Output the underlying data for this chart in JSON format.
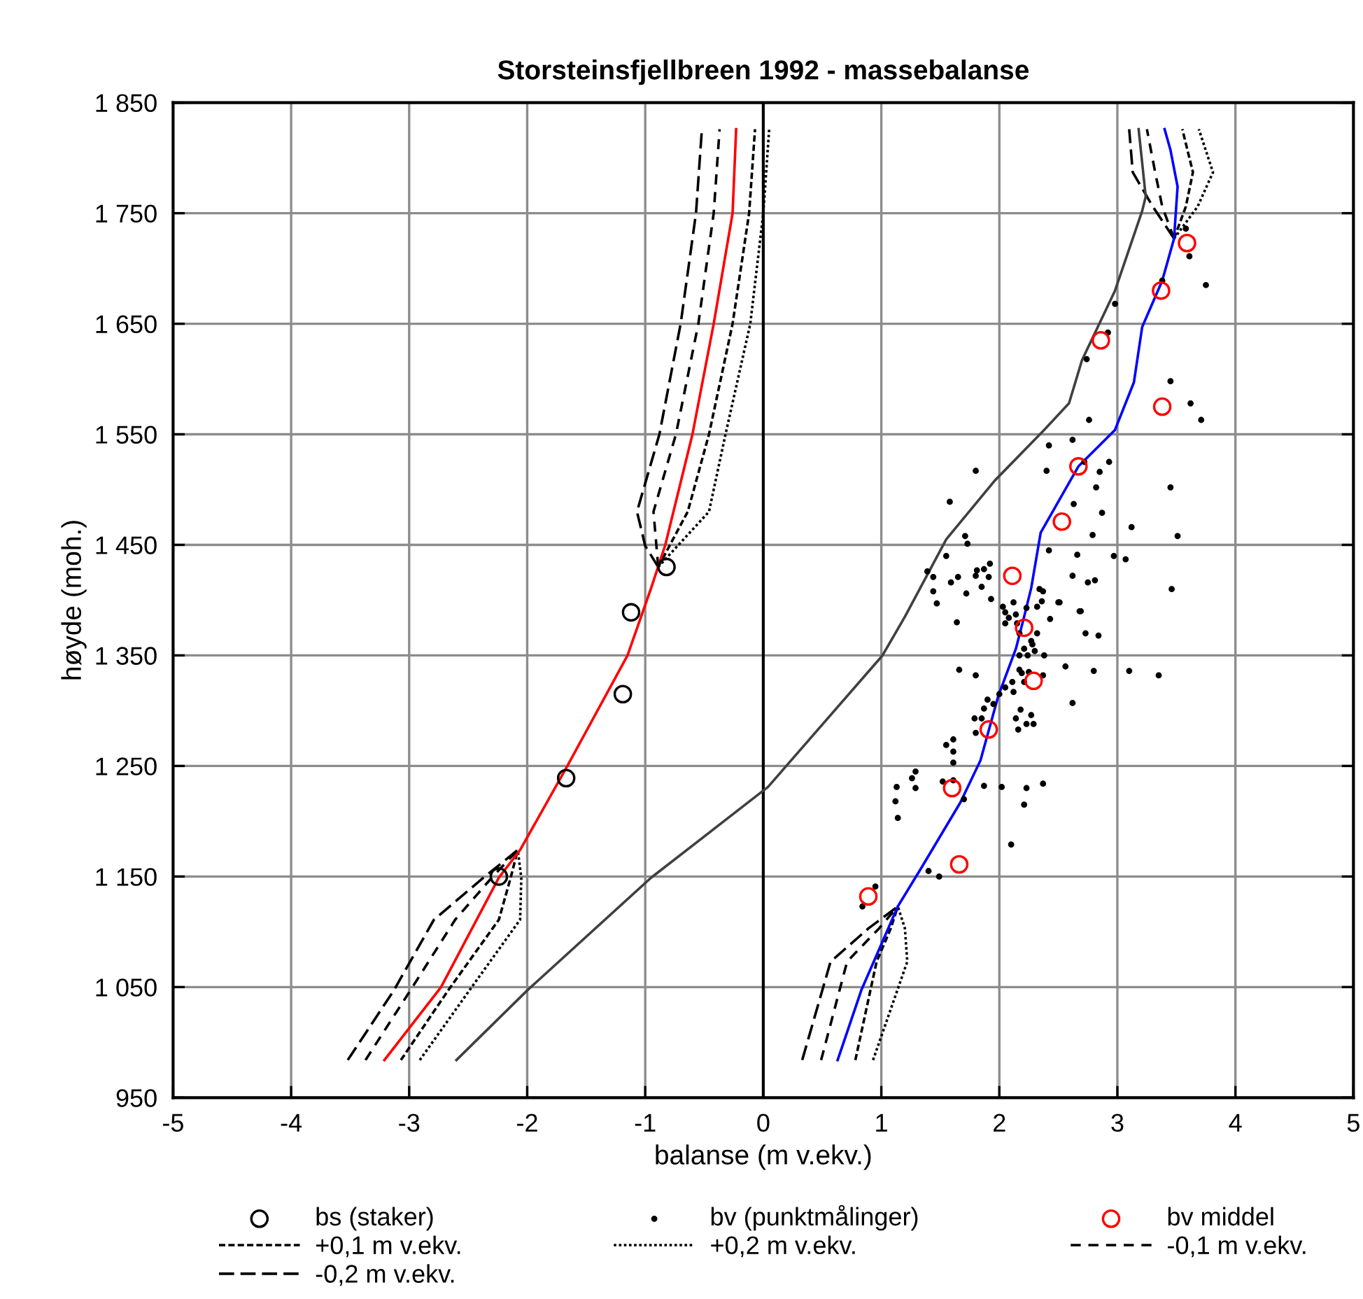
{
  "chart_data": {
    "type": "line",
    "title": "Storsteinsfjellbreen 1992 - massebalanse",
    "xlabel": "balanse (m v.ekv.)",
    "ylabel": "høyde (moh.)",
    "xlim": [
      -5,
      5
    ],
    "xticks": [
      -5,
      -4,
      -3,
      -2,
      -1,
      0,
      1,
      2,
      3,
      4,
      5
    ],
    "ylim": [
      950,
      1850
    ],
    "yticks": [
      {
        "value": 950,
        "label": "950"
      },
      {
        "value": 1050,
        "label": "1 050"
      },
      {
        "value": 1150,
        "label": "1 150"
      },
      {
        "value": 1250,
        "label": "1 250"
      },
      {
        "value": 1350,
        "label": "1 350"
      },
      {
        "value": 1450,
        "label": "1 450"
      },
      {
        "value": 1550,
        "label": "1 550"
      },
      {
        "value": 1650,
        "label": "1 650"
      },
      {
        "value": 1750,
        "label": "1 750"
      },
      {
        "value": 1850,
        "label": "1 850"
      }
    ],
    "grid": true,
    "legend": "bottom",
    "ref_lines": [
      {
        "axis": "x",
        "value": 0,
        "color": "#000000"
      }
    ],
    "series": [
      {
        "name": "bs (staker)",
        "type": "scatter",
        "marker": "circle",
        "color": "#000000",
        "x": [
          -0.82,
          -1.12,
          -1.19,
          -1.67,
          -2.24
        ],
        "values": [
          1430,
          1389,
          1315,
          1239,
          1150
        ]
      },
      {
        "name": "bv (punktmålinger)",
        "type": "scatter",
        "marker": "point",
        "color": "#000000",
        "x": [
          3.58,
          3.61,
          3.75,
          3.38,
          2.98,
          2.92,
          2.74,
          3.45,
          3.62,
          3.71,
          2.76,
          2.42,
          2.62,
          1.8,
          2.4,
          2.72,
          2.93,
          2.85,
          2.82,
          3.45,
          1.58,
          2.63,
          2.87,
          3.12,
          2.79,
          3.51,
          1.71,
          1.73,
          2.42,
          1.55,
          2.66,
          2.97,
          3.07,
          1.39,
          1.81,
          1.87,
          1.92,
          1.44,
          1.65,
          1.8,
          1.91,
          2.62,
          2.75,
          2.81,
          3.46,
          1.44,
          1.59,
          1.72,
          1.85,
          1.47,
          1.93,
          2.12,
          2.51,
          2.34,
          2.32,
          2.03,
          2.69,
          2.23,
          2.37,
          2.36,
          2.5,
          2.68,
          2.05,
          2.08,
          2.05,
          2.14,
          2.15,
          2.43,
          1.64,
          2.17,
          2.32,
          2.73,
          2.84,
          2.27,
          2.28,
          2.21,
          2.3,
          2.17,
          2.24,
          2.38,
          1.66,
          1.8,
          2.17,
          2.19,
          2.25,
          2.37,
          2.56,
          2.8,
          3.1,
          3.35,
          2.11,
          2.21,
          2.05,
          2.0,
          2.12,
          1.9,
          1.95,
          2.62,
          1.87,
          2.18,
          2.27,
          2.14,
          1.79,
          1.85,
          2.23,
          2.29,
          2.16,
          1.8,
          1.61,
          1.55,
          1.61,
          1.61,
          1.29,
          1.26,
          1.52,
          1.61,
          1.87,
          2.02,
          2.23,
          2.37,
          1.13,
          1.29,
          1.12,
          1.7,
          2.21,
          1.14,
          2.1,
          1.4,
          1.49,
          0.95,
          0.84
        ],
        "values": [
          1736,
          1711,
          1685,
          1689,
          1668,
          1642,
          1618,
          1598,
          1578,
          1563,
          1563,
          1540,
          1545,
          1517,
          1517,
          1525,
          1525,
          1516,
          1502,
          1502,
          1489,
          1487,
          1479,
          1466,
          1459,
          1458,
          1458,
          1451,
          1445,
          1440,
          1441,
          1440,
          1437,
          1426,
          1427,
          1428,
          1433,
          1421,
          1421,
          1422,
          1421,
          1422,
          1416,
          1418,
          1410,
          1408,
          1416,
          1406,
          1412,
          1397,
          1401,
          1398,
          1398,
          1410,
          1394,
          1394,
          1390,
          1393,
          1408,
          1399,
          1398,
          1390,
          1389,
          1384,
          1379,
          1387,
          1379,
          1383,
          1380,
          1370,
          1370,
          1370,
          1368,
          1363,
          1360,
          1356,
          1354,
          1350,
          1350,
          1350,
          1337,
          1332,
          1337,
          1334,
          1335,
          1332,
          1340,
          1336,
          1336,
          1332,
          1326,
          1326,
          1321,
          1315,
          1317,
          1310,
          1306,
          1307,
          1302,
          1301,
          1296,
          1293,
          1293,
          1293,
          1288,
          1288,
          1283,
          1280,
          1274,
          1269,
          1263,
          1253,
          1245,
          1239,
          1236,
          1237,
          1232,
          1231,
          1230,
          1234,
          1231,
          1230,
          1218,
          1220,
          1215,
          1203,
          1179,
          1155,
          1150,
          1141,
          1123
        ]
      },
      {
        "name": "bv middel",
        "type": "scatter",
        "marker": "circle",
        "color": "#ff0000",
        "x": [
          3.59,
          3.37,
          2.86,
          3.38,
          2.67,
          2.53,
          2.11,
          2.21,
          2.29,
          1.91,
          1.6,
          1.66,
          0.89
        ],
        "values": [
          1723,
          1680,
          1635,
          1575,
          1521,
          1471,
          1422,
          1375,
          1327,
          1283,
          1230,
          1161,
          1132
        ]
      },
      {
        "name": "+0,1 m v.ekv.",
        "line_style": "shortdash",
        "color": "#000000",
        "x": [
          -3.07,
          -2.67,
          -2.24,
          -2.14,
          -2.08,
          null,
          -0.89,
          -0.64,
          -0.46,
          -0.26,
          -0.12,
          -0.07,
          null,
          0.78,
          0.96,
          1.08,
          1.14,
          null,
          3.48,
          3.58,
          3.64,
          3.55
        ],
        "values": [
          984,
          1047,
          1111,
          1149,
          1174,
          null,
          1430,
          1480,
          1550,
          1650,
          1750,
          1826,
          null,
          984,
          1073,
          1103,
          1123,
          null,
          1727,
          1756,
          1787,
          1826
        ]
      },
      {
        "name": "+0,2 m v.ekv.",
        "line_style": "dotted",
        "color": "#000000",
        "x": [
          -2.91,
          -2.49,
          -2.06,
          -2.05,
          -2.08,
          null,
          -0.89,
          -0.46,
          -0.32,
          -0.11,
          0.0,
          0.05,
          null,
          0.93,
          1.22,
          1.2,
          1.14,
          null,
          3.48,
          3.68,
          3.81,
          3.69
        ],
        "values": [
          984,
          1047,
          1111,
          1149,
          1174,
          null,
          1430,
          1480,
          1550,
          1650,
          1750,
          1826,
          null,
          984,
          1073,
          1103,
          1123,
          null,
          1727,
          1756,
          1787,
          1826
        ]
      },
      {
        "name": "-0,1 m v.ekv.",
        "line_style": "dashed",
        "color": "#000000",
        "x": [
          -3.37,
          -2.99,
          -2.61,
          -2.3,
          -2.08,
          null,
          -0.89,
          -0.93,
          -0.74,
          -0.55,
          -0.42,
          -0.37,
          null,
          0.49,
          0.71,
          0.98,
          1.14,
          null,
          3.48,
          3.38,
          3.32,
          3.25
        ],
        "values": [
          984,
          1047,
          1111,
          1149,
          1174,
          null,
          1430,
          1480,
          1550,
          1650,
          1750,
          1826,
          null,
          984,
          1073,
          1103,
          1123,
          null,
          1727,
          1756,
          1787,
          1826
        ]
      },
      {
        "name": "-0,2 m v.ekv.",
        "line_style": "longdash",
        "color": "#000000",
        "x": [
          -3.52,
          -3.13,
          -2.79,
          -2.37,
          -2.08,
          null,
          -0.89,
          -1.0,
          -1.07,
          -0.88,
          -0.7,
          -0.57,
          -0.52,
          null,
          0.33,
          0.57,
          0.89,
          1.14,
          null,
          3.48,
          3.3,
          3.13,
          3.1
        ],
        "values": [
          984,
          1047,
          1111,
          1149,
          1174,
          null,
          1430,
          1449,
          1480,
          1550,
          1650,
          1750,
          1826,
          null,
          984,
          1073,
          1103,
          1123,
          null,
          1727,
          1756,
          1787,
          1826
        ]
      },
      {
        "line_style": "solid",
        "color": "#ff0000",
        "x": [
          -3.21,
          -2.73,
          -2.24,
          -2.06,
          -1.66,
          -1.15,
          -0.95,
          -0.83,
          -0.6,
          -0.42,
          -0.26,
          -0.23
        ],
        "values": [
          984,
          1050,
          1149,
          1174,
          1250,
          1350,
          1411,
          1450,
          1550,
          1650,
          1750,
          1826
        ]
      },
      {
        "line_style": "solid",
        "color": "#0000ff",
        "x": [
          0.63,
          0.83,
          1.14,
          1.34,
          1.67,
          1.84,
          1.99,
          2.14,
          2.21,
          2.27,
          2.35,
          2.67,
          2.98,
          3.14,
          3.21,
          3.38,
          3.48,
          3.51,
          3.45,
          3.4
        ],
        "values": [
          984,
          1047,
          1123,
          1158,
          1217,
          1255,
          1313,
          1356,
          1385,
          1411,
          1461,
          1521,
          1554,
          1597,
          1647,
          1689,
          1727,
          1774,
          1807,
          1826
        ]
      },
      {
        "line_style": "solid",
        "color": "#404040",
        "x": [
          -2.6,
          -2.0,
          -0.95,
          0.04,
          1.01,
          1.2,
          1.55,
          1.96,
          2.38,
          2.59,
          2.7,
          2.98,
          3.21,
          3.24,
          3.18
        ],
        "values": [
          984,
          1047,
          1149,
          1231,
          1350,
          1385,
          1455,
          1508,
          1554,
          1578,
          1617,
          1680,
          1752,
          1765,
          1826
        ]
      }
    ]
  }
}
